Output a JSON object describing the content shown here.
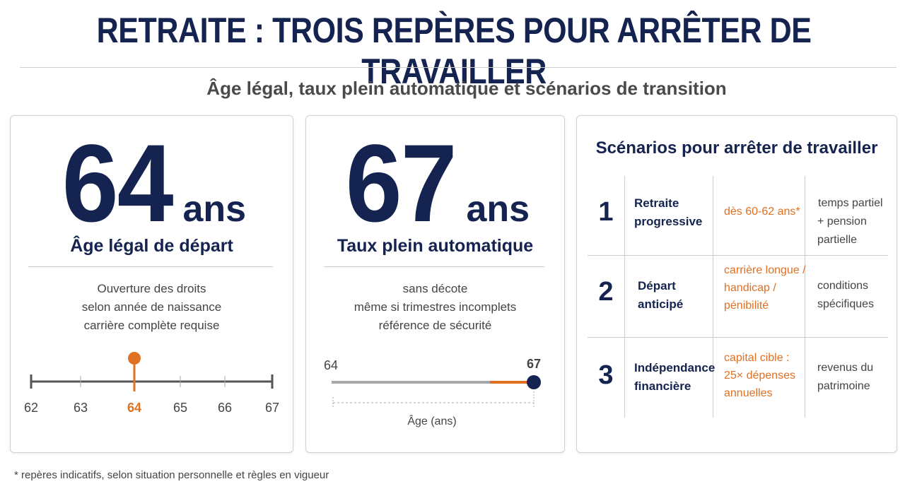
{
  "title": "RETRAITE : TROIS REPÈRES POUR ARRÊTER DE TRAVAILLER",
  "subtitle": "Âge légal, taux plein automatique et scénarios de transition",
  "card1": {
    "number": "64",
    "unit": "ans",
    "label": "Âge légal de départ",
    "lines": [
      "Ouverture des droits",
      "selon année de naissance",
      "carrière complète requise"
    ],
    "scale_ticks": [
      "62",
      "63",
      "64",
      "65",
      "66",
      "67"
    ],
    "highlight": "64",
    "accent": "#e07022"
  },
  "card2": {
    "number": "67",
    "unit": "ans",
    "label": "Taux plein automatique",
    "lines": [
      "sans décote",
      "même si trimestres incomplets",
      "référence de sécurité"
    ],
    "scale_start": "64",
    "scale_end": "67",
    "axis_label": "Âge (ans)",
    "accent": "#e07022",
    "dot_color": "#14234f"
  },
  "card3": {
    "title": "Scénarios pour arrêter de travailler",
    "rows": [
      {
        "num": "1",
        "name": [
          "Retraite",
          "progressive"
        ],
        "condition": [
          "dès 60-62 ans*"
        ],
        "result": [
          "temps partiel",
          "+ pension partielle"
        ]
      },
      {
        "num": "2",
        "name": [
          "Départ",
          "anticipé"
        ],
        "condition": [
          "carrière longue /",
          "handicap /",
          "pénibilité"
        ],
        "result": [
          "conditions",
          "spécifiques"
        ]
      },
      {
        "num": "3",
        "name": [
          "Indépendance",
          "financière"
        ],
        "condition": [
          "capital cible :",
          "25× dépenses",
          "annuelles"
        ],
        "result": [
          "revenus du",
          "patrimoine"
        ]
      }
    ]
  },
  "footnote": "* repères indicatifs, selon situation personnelle et règles en vigueur",
  "colors": {
    "navy": "#14234f",
    "orange": "#e07022",
    "grey_text": "#444444"
  }
}
